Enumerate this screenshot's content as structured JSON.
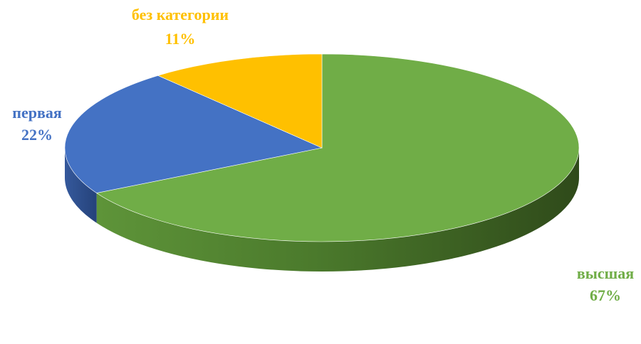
{
  "chart_data": {
    "type": "pie",
    "style": "3d",
    "title": "",
    "legend": "none",
    "slices": [
      {
        "name": "высшая",
        "value": 67,
        "label": "67%",
        "color": "#70AD47",
        "dark": "#3F6127"
      },
      {
        "name": "первая",
        "value": 22,
        "label": "22%",
        "color": "#4472C4",
        "dark": "#25427A"
      },
      {
        "name": "без категории",
        "value": 11,
        "label": "11%",
        "color": "#FFC000",
        "dark": "#A67C00"
      }
    ]
  }
}
